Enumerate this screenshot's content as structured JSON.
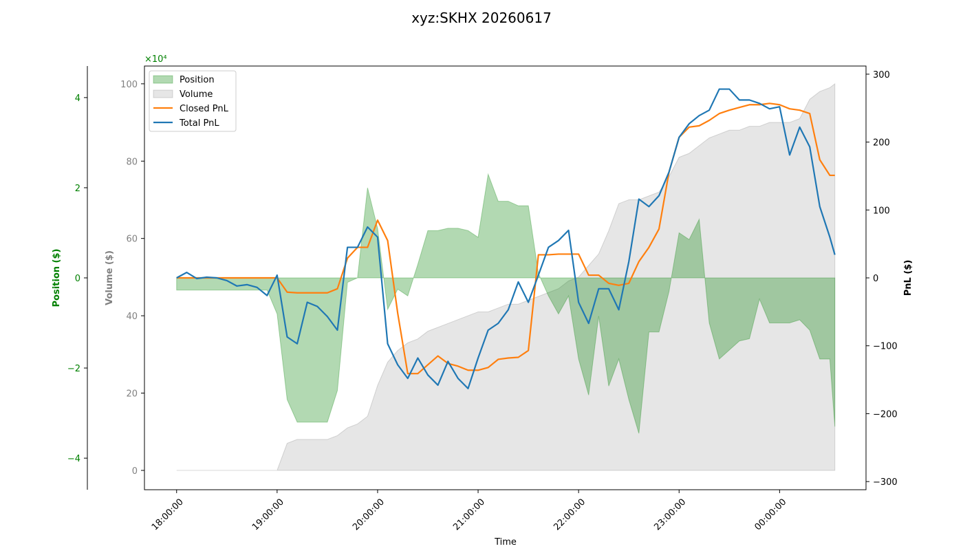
{
  "chart_data": {
    "type": "line",
    "title": "xyz:SKHX 20260617",
    "xlabel": "Time",
    "ylabel": "Volume ($)",
    "y2label": "PnL ($)",
    "y3label": "Position ($)",
    "y3_offset_label": "×10⁴",
    "legend": "upper left",
    "xlim": [
      17.68,
      24.86
    ],
    "xticks": [
      {
        "value": 18,
        "label": "18:00:00"
      },
      {
        "value": 19,
        "label": "19:00:00"
      },
      {
        "value": 20,
        "label": "20:00:00"
      },
      {
        "value": 21,
        "label": "21:00:00"
      },
      {
        "value": 22,
        "label": "22:00:00"
      },
      {
        "value": 23,
        "label": "23:00:00"
      },
      {
        "value": 24,
        "label": "00:00:00"
      }
    ],
    "ylim": [
      -5,
      104.6
    ],
    "yticks": [
      0,
      20,
      40,
      60,
      80,
      100
    ],
    "y2lim": [
      -312,
      312
    ],
    "y2ticks": [
      {
        "value": -300,
        "label": "−300"
      },
      {
        "value": -200,
        "label": "−200"
      },
      {
        "value": -100,
        "label": "−100"
      },
      0,
      100,
      200,
      300
    ],
    "y3lim": [
      -4.7,
      4.7
    ],
    "y3ticks": [
      {
        "value": -4,
        "label": "−4"
      },
      {
        "value": -2,
        "label": "−2"
      },
      0,
      2,
      4
    ],
    "x": [
      18.0,
      18.1,
      18.2,
      18.3,
      18.4,
      18.5,
      18.6,
      18.7,
      18.8,
      18.9,
      19.0,
      19.1,
      19.2,
      19.3,
      19.4,
      19.5,
      19.6,
      19.7,
      19.8,
      19.9,
      20.0,
      20.1,
      20.2,
      20.3,
      20.4,
      20.5,
      20.6,
      20.7,
      20.8,
      20.9,
      21.0,
      21.1,
      21.2,
      21.3,
      21.4,
      21.5,
      21.6,
      21.7,
      21.8,
      21.9,
      22.0,
      22.1,
      22.2,
      22.3,
      22.4,
      22.5,
      22.6,
      22.7,
      22.8,
      22.9,
      23.0,
      23.1,
      23.2,
      23.3,
      23.4,
      23.5,
      23.6,
      23.7,
      23.8,
      23.9,
      24.0,
      24.1,
      24.2,
      24.3,
      24.4,
      24.5,
      24.55
    ],
    "series": [
      {
        "name": "Volume",
        "type": "area",
        "axis": "y",
        "color": "gray",
        "values": [
          0,
          0,
          0,
          0,
          0,
          0,
          0,
          0,
          0,
          0,
          0,
          7,
          8,
          8,
          8,
          8,
          9,
          11,
          12,
          14,
          22,
          28,
          31,
          33,
          34,
          36,
          37,
          38,
          39,
          40,
          41,
          41,
          42,
          43,
          43,
          44,
          45,
          46,
          47,
          49,
          50,
          53,
          56,
          62,
          69,
          70,
          70,
          71,
          72,
          76,
          81,
          82,
          84,
          86,
          87,
          88,
          88,
          89,
          89,
          90,
          90,
          90,
          91,
          96,
          98,
          99,
          100
        ]
      },
      {
        "name": "Position",
        "type": "area",
        "axis": "y3",
        "color": "green",
        "values": [
          -0.27,
          -0.27,
          -0.27,
          -0.27,
          -0.27,
          -0.27,
          -0.27,
          -0.27,
          -0.27,
          -0.27,
          -0.8,
          -2.7,
          -3.2,
          -3.2,
          -3.2,
          -3.2,
          -2.5,
          -0.1,
          0,
          2.0,
          1.1,
          -0.7,
          -0.25,
          -0.4,
          0.3,
          1.05,
          1.05,
          1.1,
          1.1,
          1.05,
          0.9,
          2.3,
          1.7,
          1.7,
          1.6,
          1.6,
          0.1,
          -0.4,
          -0.8,
          -0.4,
          -1.8,
          -2.6,
          -0.85,
          -2.4,
          -1.8,
          -2.7,
          -3.45,
          -1.2,
          -1.2,
          -0.3,
          1.0,
          0.85,
          1.3,
          -1.0,
          -1.8,
          -1.6,
          -1.4,
          -1.35,
          -0.47,
          -1.0,
          -1.0,
          -1.0,
          -0.93,
          -1.16,
          -1.8,
          -1.8,
          -3.3
        ]
      },
      {
        "name": "Closed PnL",
        "type": "line",
        "axis": "y2",
        "color": "#ff7f0e",
        "values": [
          0,
          0,
          0,
          0,
          0,
          0,
          0,
          0,
          0,
          0,
          0,
          -21,
          -22,
          -22,
          -22,
          -22,
          -16,
          29,
          45,
          45,
          85,
          55,
          -52,
          -141,
          -141,
          -128,
          -115,
          -126,
          -130,
          -136,
          -136,
          -132,
          -120,
          -118,
          -117,
          -107,
          34,
          34,
          35,
          35,
          35,
          4,
          4,
          -8,
          -11,
          -8,
          24,
          45,
          72,
          156,
          207,
          222,
          224,
          232,
          242,
          247,
          251,
          255,
          255,
          257,
          255,
          249,
          247,
          242,
          174,
          151,
          151
        ]
      },
      {
        "name": "Total PnL",
        "type": "line",
        "axis": "y2",
        "color": "#1f77b4",
        "values": [
          0,
          8,
          -1,
          1,
          0,
          -4,
          -12,
          -10,
          -14,
          -26,
          4,
          -87,
          -97,
          -36,
          -42,
          -57,
          -77,
          45,
          45,
          75,
          60,
          -97,
          -128,
          -148,
          -118,
          -143,
          -158,
          -123,
          -148,
          -163,
          -118,
          -77,
          -67,
          -47,
          -6,
          -36,
          4,
          45,
          55,
          70,
          -36,
          -67,
          -16,
          -16,
          -47,
          24,
          116,
          105,
          121,
          156,
          207,
          227,
          239,
          247,
          278,
          278,
          262,
          262,
          257,
          249,
          252,
          181,
          222,
          193,
          105,
          60,
          34
        ]
      }
    ]
  }
}
